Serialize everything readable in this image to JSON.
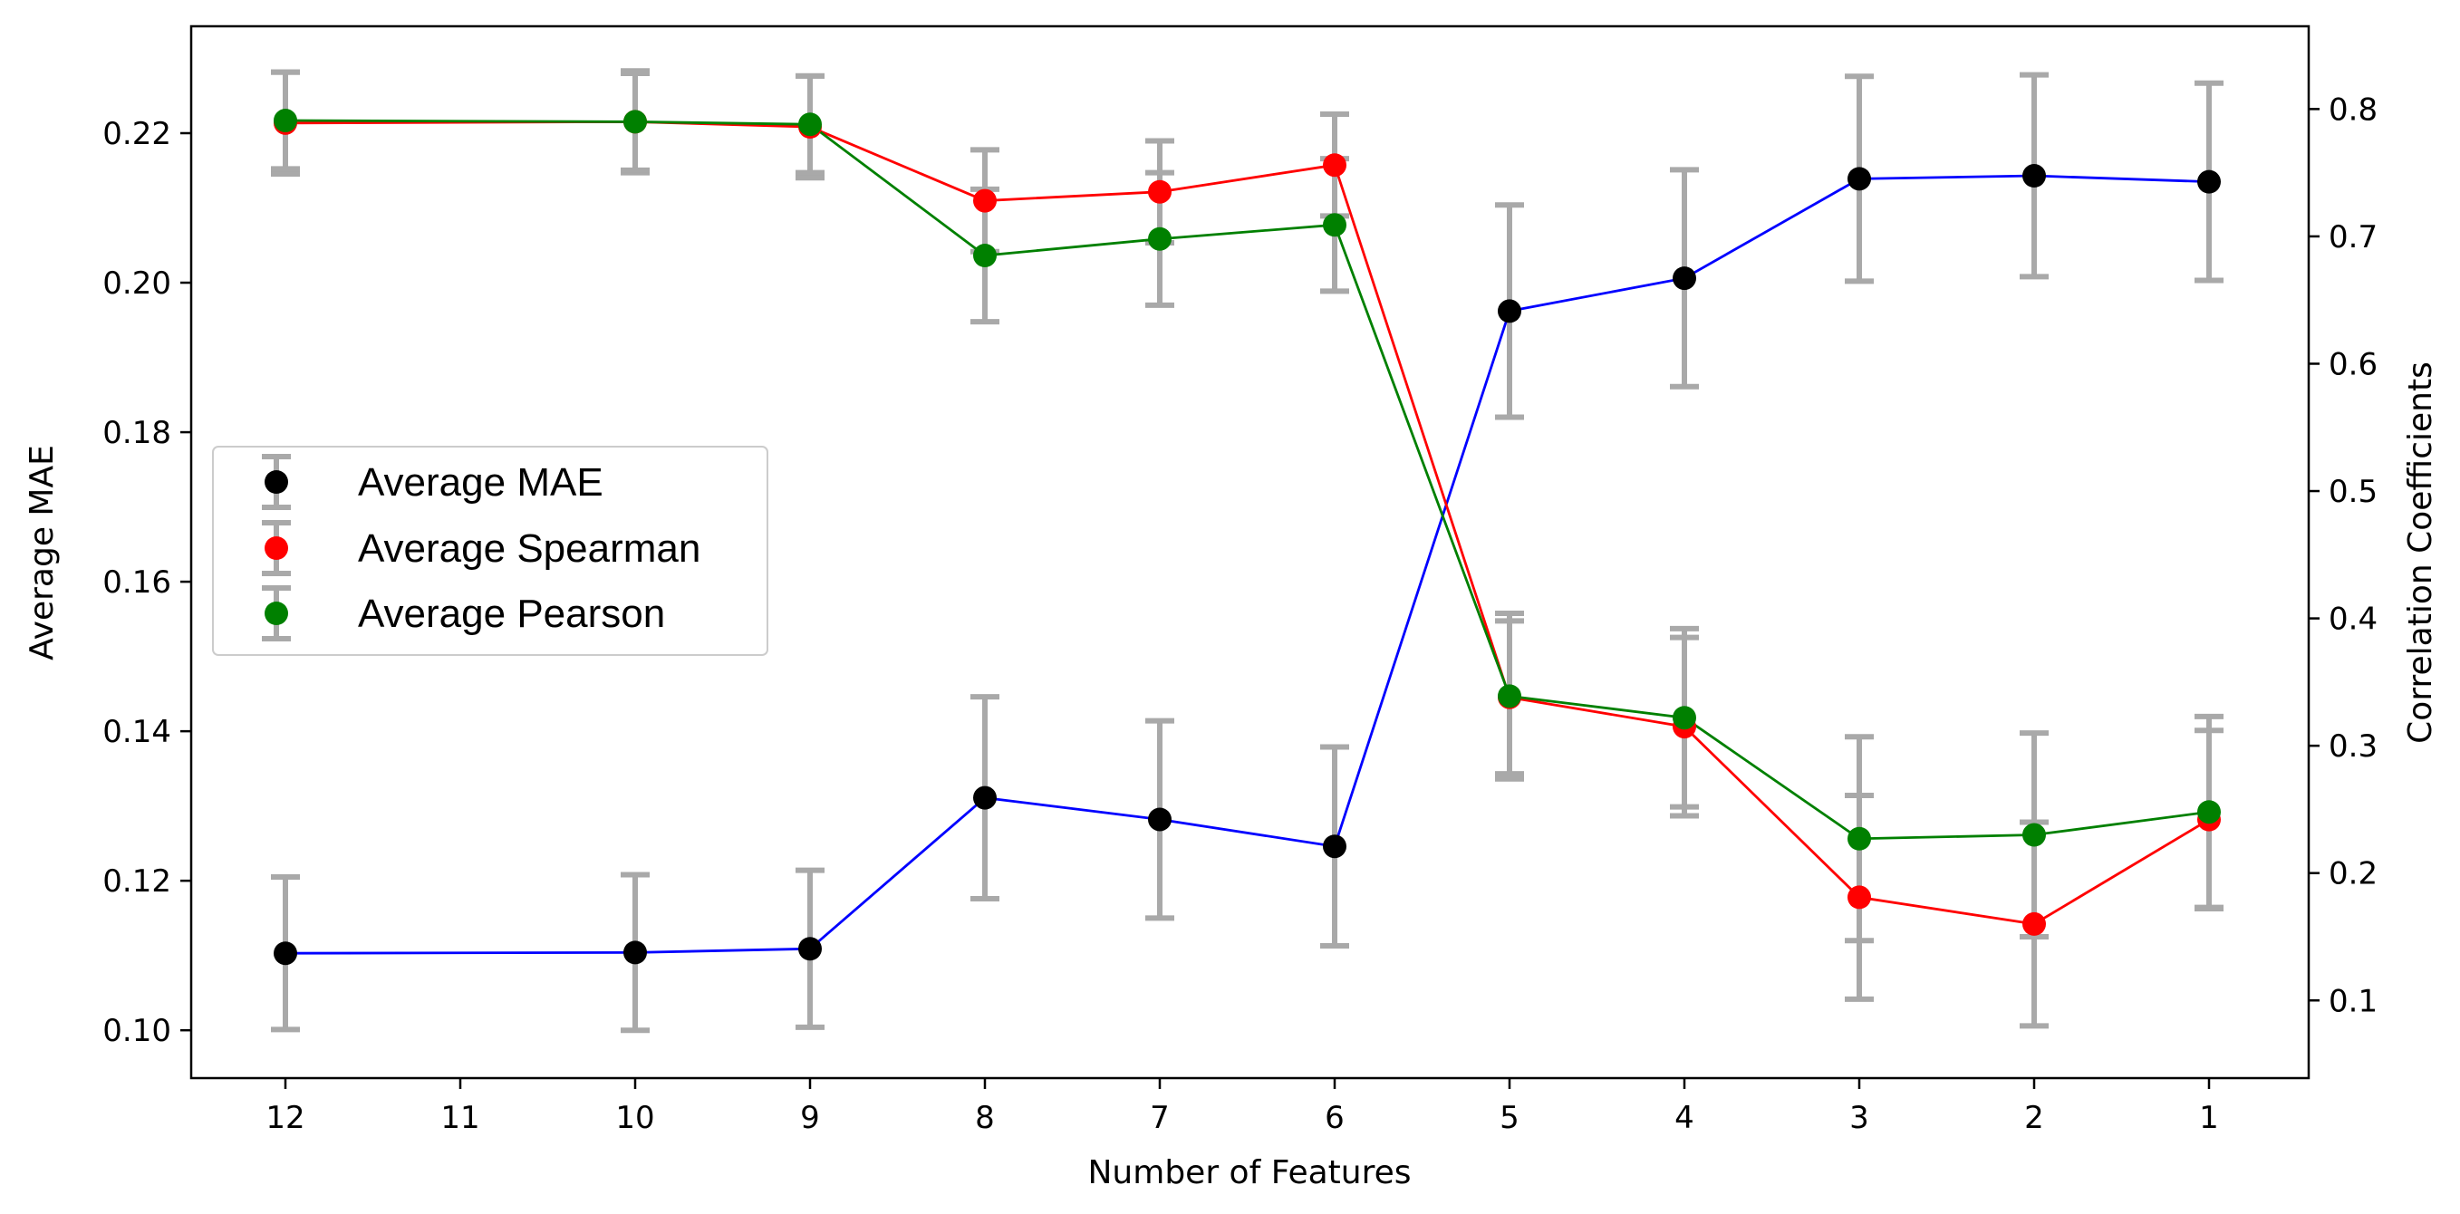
{
  "chart_data": {
    "type": "line",
    "title": "",
    "xlabel": "Number of Features",
    "ylabel_left": "Average MAE",
    "ylabel_right": "Correlation Coefficients",
    "x": [
      12,
      11,
      10,
      9,
      8,
      7,
      6,
      5,
      4,
      3,
      2,
      1
    ],
    "x_ticks": [
      "12",
      "11",
      "10",
      "9",
      "8",
      "7",
      "6",
      "5",
      "4",
      "3",
      "2",
      "1"
    ],
    "x_order": "descending",
    "ylim_left": [
      0.0936,
      0.2343
    ],
    "ylim_right": [
      0.039,
      0.865
    ],
    "yticks_left": [
      "0.10",
      "0.12",
      "0.14",
      "0.16",
      "0.18",
      "0.20",
      "0.22"
    ],
    "yticks_right": [
      "0.1",
      "0.2",
      "0.3",
      "0.4",
      "0.5",
      "0.6",
      "0.7",
      "0.8"
    ],
    "grid": false,
    "legend_placement": "center-left",
    "series": [
      {
        "name": "Average MAE",
        "axis": "left",
        "line_color": "#0000ff",
        "marker_color": "#000000",
        "x": [
          12,
          10,
          9,
          8,
          7,
          6,
          5,
          4,
          3,
          2,
          1
        ],
        "values": [
          0.1103,
          0.1104,
          0.1109,
          0.1311,
          0.1282,
          0.1246,
          0.1962,
          0.2006,
          0.2139,
          0.2143,
          0.2135
        ],
        "error": [
          0.0102,
          0.0104,
          0.0105,
          0.0135,
          0.0132,
          0.0133,
          0.0142,
          0.0145,
          0.0137,
          0.0135,
          0.0132
        ]
      },
      {
        "name": "Average Spearman",
        "axis": "right",
        "line_color": "#ff0000",
        "marker_color": "#ff0000",
        "x": [
          12,
          10,
          9,
          8,
          7,
          6,
          5,
          4,
          3,
          2,
          1
        ],
        "values": [
          0.789,
          0.79,
          0.786,
          0.728,
          0.735,
          0.756,
          0.338,
          0.315,
          0.181,
          0.16,
          0.242
        ],
        "error": [
          0.04,
          0.04,
          0.04,
          0.04,
          0.04,
          0.04,
          0.06,
          0.07,
          0.08,
          0.08,
          0.07
        ]
      },
      {
        "name": "Average Pearson",
        "axis": "right",
        "line_color": "#008000",
        "marker_color": "#008000",
        "x": [
          12,
          10,
          9,
          8,
          7,
          6,
          5,
          4,
          3,
          2,
          1
        ],
        "values": [
          0.791,
          0.79,
          0.788,
          0.685,
          0.698,
          0.709,
          0.339,
          0.322,
          0.227,
          0.23,
          0.248
        ],
        "error": [
          0.038,
          0.038,
          0.038,
          0.052,
          0.052,
          0.052,
          0.065,
          0.07,
          0.08,
          0.08,
          0.075
        ]
      }
    ],
    "error_bar_color": "#a9a9a9"
  }
}
